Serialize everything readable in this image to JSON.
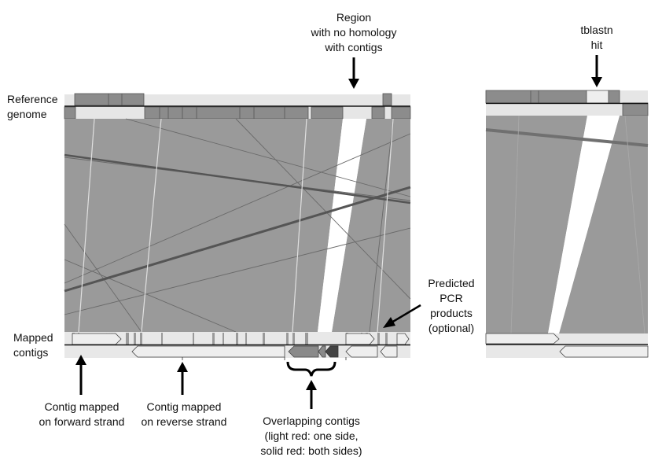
{
  "annotations": {
    "region_no_homology": [
      "Region",
      "with no homology",
      "with contigs"
    ],
    "reference_genome": [
      "Reference",
      "genome"
    ],
    "mapped_contigs": [
      "Mapped",
      "contigs"
    ],
    "predicted_pcr": [
      "Predicted",
      "PCR",
      "products",
      "(optional)"
    ],
    "contig_forward": [
      "Contig mapped",
      "on forward strand"
    ],
    "contig_reverse": [
      "Contig mapped",
      "on reverse strand"
    ],
    "overlapping_contigs": [
      "Overlapping contigs",
      "(light red: one side,",
      "solid red: both sides)"
    ],
    "tblastn_hit": [
      "tblastn",
      "hit"
    ]
  },
  "colors": {
    "band": "#9a9a9a",
    "band_dark": "#7f7f7f",
    "track_light": "#e8e8e8",
    "feature": "#8c8c8c",
    "line_dark": "#555555",
    "overlap_one_side": "#8a8a8a",
    "overlap_both_sides": "#444444"
  }
}
